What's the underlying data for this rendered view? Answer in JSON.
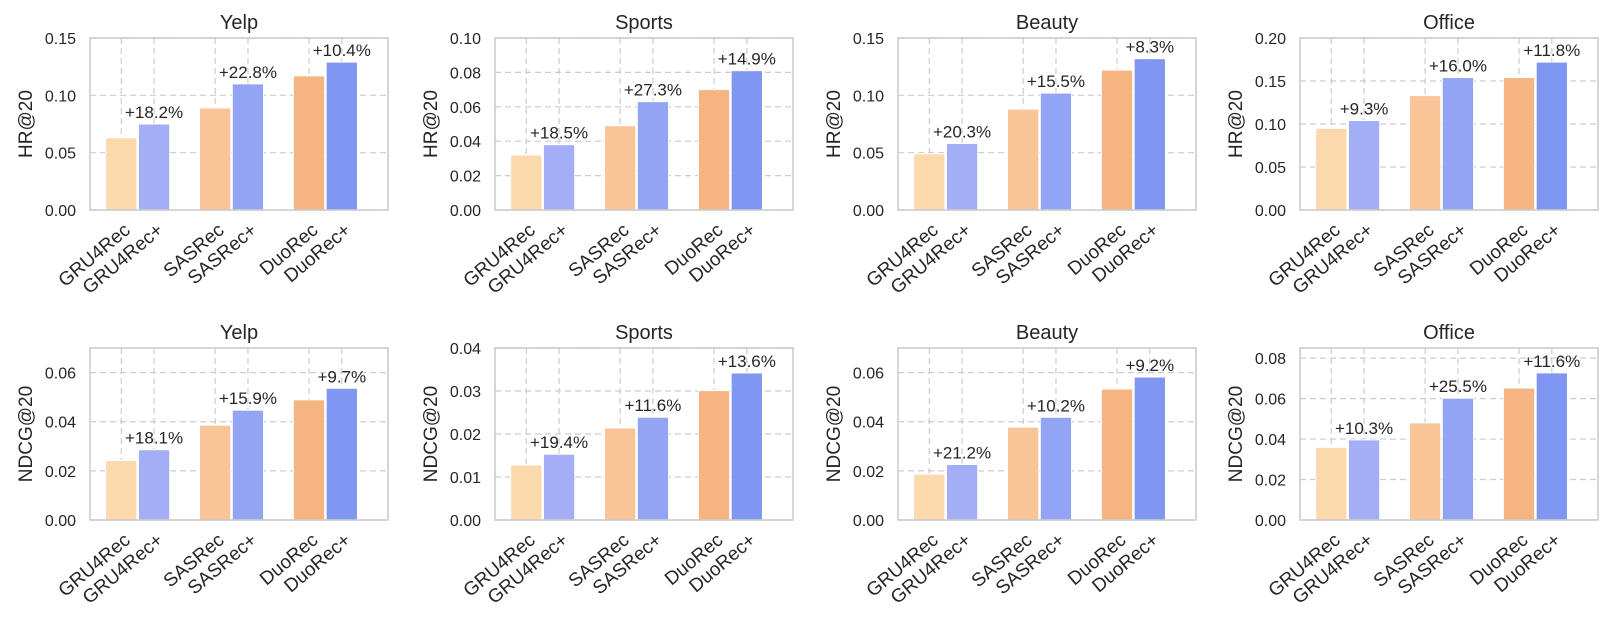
{
  "colors": {
    "orange": [
      "#fcd9ac",
      "#f9c497",
      "#f5b482"
    ],
    "blue": [
      "#a3aef7",
      "#94a4f4",
      "#7f97f1"
    ],
    "grid": "#cccccc",
    "frame": "#cccccc"
  },
  "chart_data": [
    {
      "type": "bar",
      "title": "Yelp",
      "ylabel": "HR@20",
      "categories": [
        "GRU4Rec",
        "GRU4Rec+",
        "SASRec",
        "SASRec+",
        "DuoRec",
        "DuoRec+"
      ],
      "values": [
        0.063,
        0.075,
        0.089,
        0.11,
        0.117,
        0.129
      ],
      "annotations": [
        "+18.2%",
        "+22.8%",
        "+10.4%"
      ],
      "ylim": [
        0,
        0.15
      ],
      "yticks": [
        "0.00",
        "0.05",
        "0.10",
        "0.15"
      ],
      "grid": true
    },
    {
      "type": "bar",
      "title": "Sports",
      "ylabel": "HR@20",
      "categories": [
        "GRU4Rec",
        "GRU4Rec+",
        "SASRec",
        "SASRec+",
        "DuoRec",
        "DuoRec+"
      ],
      "values": [
        0.032,
        0.038,
        0.049,
        0.063,
        0.07,
        0.081
      ],
      "annotations": [
        "+18.5%",
        "+27.3%",
        "+14.9%"
      ],
      "ylim": [
        0,
        0.1
      ],
      "yticks": [
        "0.00",
        "0.02",
        "0.04",
        "0.06",
        "0.08",
        "0.10"
      ],
      "grid": true
    },
    {
      "type": "bar",
      "title": "Beauty",
      "ylabel": "HR@20",
      "categories": [
        "GRU4Rec",
        "GRU4Rec+",
        "SASRec",
        "SASRec+",
        "DuoRec",
        "DuoRec+"
      ],
      "values": [
        0.049,
        0.058,
        0.088,
        0.102,
        0.122,
        0.132
      ],
      "annotations": [
        "+20.3%",
        "+15.5%",
        "+8.3%"
      ],
      "ylim": [
        0,
        0.15
      ],
      "yticks": [
        "0.00",
        "0.05",
        "0.10",
        "0.15"
      ],
      "grid": true
    },
    {
      "type": "bar",
      "title": "Office",
      "ylabel": "HR@20",
      "categories": [
        "GRU4Rec",
        "GRU4Rec+",
        "SASRec",
        "SASRec+",
        "DuoRec",
        "DuoRec+"
      ],
      "values": [
        0.095,
        0.104,
        0.133,
        0.154,
        0.154,
        0.172
      ],
      "annotations": [
        "+9.3%",
        "+16.0%",
        "+11.8%"
      ],
      "ylim": [
        0,
        0.2
      ],
      "yticks": [
        "0.00",
        "0.05",
        "0.10",
        "0.15",
        "0.20"
      ],
      "grid": true
    },
    {
      "type": "bar",
      "title": "Yelp",
      "ylabel": "NDCG@20",
      "categories": [
        "GRU4Rec",
        "GRU4Rec+",
        "SASRec",
        "SASRec+",
        "DuoRec",
        "DuoRec+"
      ],
      "values": [
        0.0242,
        0.0286,
        0.0386,
        0.0447,
        0.0489,
        0.0536
      ],
      "annotations": [
        "+18.1%",
        "+15.9%",
        "+9.7%"
      ],
      "ylim": [
        0,
        0.07
      ],
      "yticks": [
        "0.00",
        "0.02",
        "0.04",
        "0.06"
      ],
      "grid": true
    },
    {
      "type": "bar",
      "title": "Sports",
      "ylabel": "NDCG@20",
      "categories": [
        "GRU4Rec",
        "GRU4Rec+",
        "SASRec",
        "SASRec+",
        "DuoRec",
        "DuoRec+"
      ],
      "values": [
        0.0128,
        0.0153,
        0.0214,
        0.0239,
        0.0301,
        0.0342
      ],
      "annotations": [
        "+19.4%",
        "+11.6%",
        "+13.6%"
      ],
      "ylim": [
        0,
        0.04
      ],
      "yticks": [
        "0.00",
        "0.01",
        "0.02",
        "0.03",
        "0.04"
      ],
      "grid": true
    },
    {
      "type": "bar",
      "title": "Beauty",
      "ylabel": "NDCG@20",
      "categories": [
        "GRU4Rec",
        "GRU4Rec+",
        "SASRec",
        "SASRec+",
        "DuoRec",
        "DuoRec+"
      ],
      "values": [
        0.0187,
        0.0226,
        0.0378,
        0.0418,
        0.0533,
        0.0582
      ],
      "annotations": [
        "+21.2%",
        "+10.2%",
        "+9.2%"
      ],
      "ylim": [
        0,
        0.07
      ],
      "yticks": [
        "0.00",
        "0.02",
        "0.04",
        "0.06"
      ],
      "grid": true
    },
    {
      "type": "bar",
      "title": "Office",
      "ylabel": "NDCG@20",
      "categories": [
        "GRU4Rec",
        "GRU4Rec+",
        "SASRec",
        "SASRec+",
        "DuoRec",
        "DuoRec+"
      ],
      "values": [
        0.0359,
        0.0396,
        0.048,
        0.0602,
        0.0652,
        0.0727
      ],
      "annotations": [
        "+10.3%",
        "+25.5%",
        "+11.6%"
      ],
      "ylim": [
        0,
        0.085
      ],
      "yticks": [
        "0.00",
        "0.02",
        "0.04",
        "0.06",
        "0.08"
      ],
      "grid": true
    }
  ]
}
